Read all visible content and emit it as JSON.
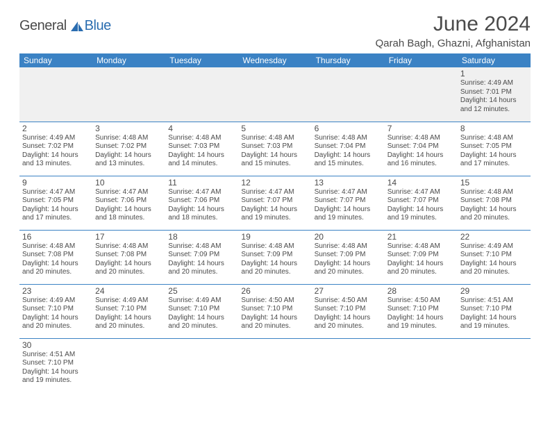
{
  "brand": {
    "part1": "General",
    "part2": "Blue"
  },
  "title": "June 2024",
  "location": "Qarah Bagh, Ghazni, Afghanistan",
  "colors": {
    "header_bg": "#3b82c4",
    "header_text": "#ffffff",
    "border": "#3b82c4",
    "text": "#4a4a4a",
    "blank_row_bg": "#f0f0f0"
  },
  "day_headers": [
    "Sunday",
    "Monday",
    "Tuesday",
    "Wednesday",
    "Thursday",
    "Friday",
    "Saturday"
  ],
  "weeks": [
    [
      null,
      null,
      null,
      null,
      null,
      null,
      {
        "n": "1",
        "sr": "Sunrise: 4:49 AM",
        "ss": "Sunset: 7:01 PM",
        "dl": "Daylight: 14 hours and 12 minutes."
      }
    ],
    [
      {
        "n": "2",
        "sr": "Sunrise: 4:49 AM",
        "ss": "Sunset: 7:02 PM",
        "dl": "Daylight: 14 hours and 13 minutes."
      },
      {
        "n": "3",
        "sr": "Sunrise: 4:48 AM",
        "ss": "Sunset: 7:02 PM",
        "dl": "Daylight: 14 hours and 13 minutes."
      },
      {
        "n": "4",
        "sr": "Sunrise: 4:48 AM",
        "ss": "Sunset: 7:03 PM",
        "dl": "Daylight: 14 hours and 14 minutes."
      },
      {
        "n": "5",
        "sr": "Sunrise: 4:48 AM",
        "ss": "Sunset: 7:03 PM",
        "dl": "Daylight: 14 hours and 15 minutes."
      },
      {
        "n": "6",
        "sr": "Sunrise: 4:48 AM",
        "ss": "Sunset: 7:04 PM",
        "dl": "Daylight: 14 hours and 15 minutes."
      },
      {
        "n": "7",
        "sr": "Sunrise: 4:48 AM",
        "ss": "Sunset: 7:04 PM",
        "dl": "Daylight: 14 hours and 16 minutes."
      },
      {
        "n": "8",
        "sr": "Sunrise: 4:48 AM",
        "ss": "Sunset: 7:05 PM",
        "dl": "Daylight: 14 hours and 17 minutes."
      }
    ],
    [
      {
        "n": "9",
        "sr": "Sunrise: 4:47 AM",
        "ss": "Sunset: 7:05 PM",
        "dl": "Daylight: 14 hours and 17 minutes."
      },
      {
        "n": "10",
        "sr": "Sunrise: 4:47 AM",
        "ss": "Sunset: 7:06 PM",
        "dl": "Daylight: 14 hours and 18 minutes."
      },
      {
        "n": "11",
        "sr": "Sunrise: 4:47 AM",
        "ss": "Sunset: 7:06 PM",
        "dl": "Daylight: 14 hours and 18 minutes."
      },
      {
        "n": "12",
        "sr": "Sunrise: 4:47 AM",
        "ss": "Sunset: 7:07 PM",
        "dl": "Daylight: 14 hours and 19 minutes."
      },
      {
        "n": "13",
        "sr": "Sunrise: 4:47 AM",
        "ss": "Sunset: 7:07 PM",
        "dl": "Daylight: 14 hours and 19 minutes."
      },
      {
        "n": "14",
        "sr": "Sunrise: 4:47 AM",
        "ss": "Sunset: 7:07 PM",
        "dl": "Daylight: 14 hours and 19 minutes."
      },
      {
        "n": "15",
        "sr": "Sunrise: 4:48 AM",
        "ss": "Sunset: 7:08 PM",
        "dl": "Daylight: 14 hours and 20 minutes."
      }
    ],
    [
      {
        "n": "16",
        "sr": "Sunrise: 4:48 AM",
        "ss": "Sunset: 7:08 PM",
        "dl": "Daylight: 14 hours and 20 minutes."
      },
      {
        "n": "17",
        "sr": "Sunrise: 4:48 AM",
        "ss": "Sunset: 7:08 PM",
        "dl": "Daylight: 14 hours and 20 minutes."
      },
      {
        "n": "18",
        "sr": "Sunrise: 4:48 AM",
        "ss": "Sunset: 7:09 PM",
        "dl": "Daylight: 14 hours and 20 minutes."
      },
      {
        "n": "19",
        "sr": "Sunrise: 4:48 AM",
        "ss": "Sunset: 7:09 PM",
        "dl": "Daylight: 14 hours and 20 minutes."
      },
      {
        "n": "20",
        "sr": "Sunrise: 4:48 AM",
        "ss": "Sunset: 7:09 PM",
        "dl": "Daylight: 14 hours and 20 minutes."
      },
      {
        "n": "21",
        "sr": "Sunrise: 4:48 AM",
        "ss": "Sunset: 7:09 PM",
        "dl": "Daylight: 14 hours and 20 minutes."
      },
      {
        "n": "22",
        "sr": "Sunrise: 4:49 AM",
        "ss": "Sunset: 7:10 PM",
        "dl": "Daylight: 14 hours and 20 minutes."
      }
    ],
    [
      {
        "n": "23",
        "sr": "Sunrise: 4:49 AM",
        "ss": "Sunset: 7:10 PM",
        "dl": "Daylight: 14 hours and 20 minutes."
      },
      {
        "n": "24",
        "sr": "Sunrise: 4:49 AM",
        "ss": "Sunset: 7:10 PM",
        "dl": "Daylight: 14 hours and 20 minutes."
      },
      {
        "n": "25",
        "sr": "Sunrise: 4:49 AM",
        "ss": "Sunset: 7:10 PM",
        "dl": "Daylight: 14 hours and 20 minutes."
      },
      {
        "n": "26",
        "sr": "Sunrise: 4:50 AM",
        "ss": "Sunset: 7:10 PM",
        "dl": "Daylight: 14 hours and 20 minutes."
      },
      {
        "n": "27",
        "sr": "Sunrise: 4:50 AM",
        "ss": "Sunset: 7:10 PM",
        "dl": "Daylight: 14 hours and 20 minutes."
      },
      {
        "n": "28",
        "sr": "Sunrise: 4:50 AM",
        "ss": "Sunset: 7:10 PM",
        "dl": "Daylight: 14 hours and 19 minutes."
      },
      {
        "n": "29",
        "sr": "Sunrise: 4:51 AM",
        "ss": "Sunset: 7:10 PM",
        "dl": "Daylight: 14 hours and 19 minutes."
      }
    ],
    [
      {
        "n": "30",
        "sr": "Sunrise: 4:51 AM",
        "ss": "Sunset: 7:10 PM",
        "dl": "Daylight: 14 hours and 19 minutes."
      },
      null,
      null,
      null,
      null,
      null,
      null
    ]
  ]
}
